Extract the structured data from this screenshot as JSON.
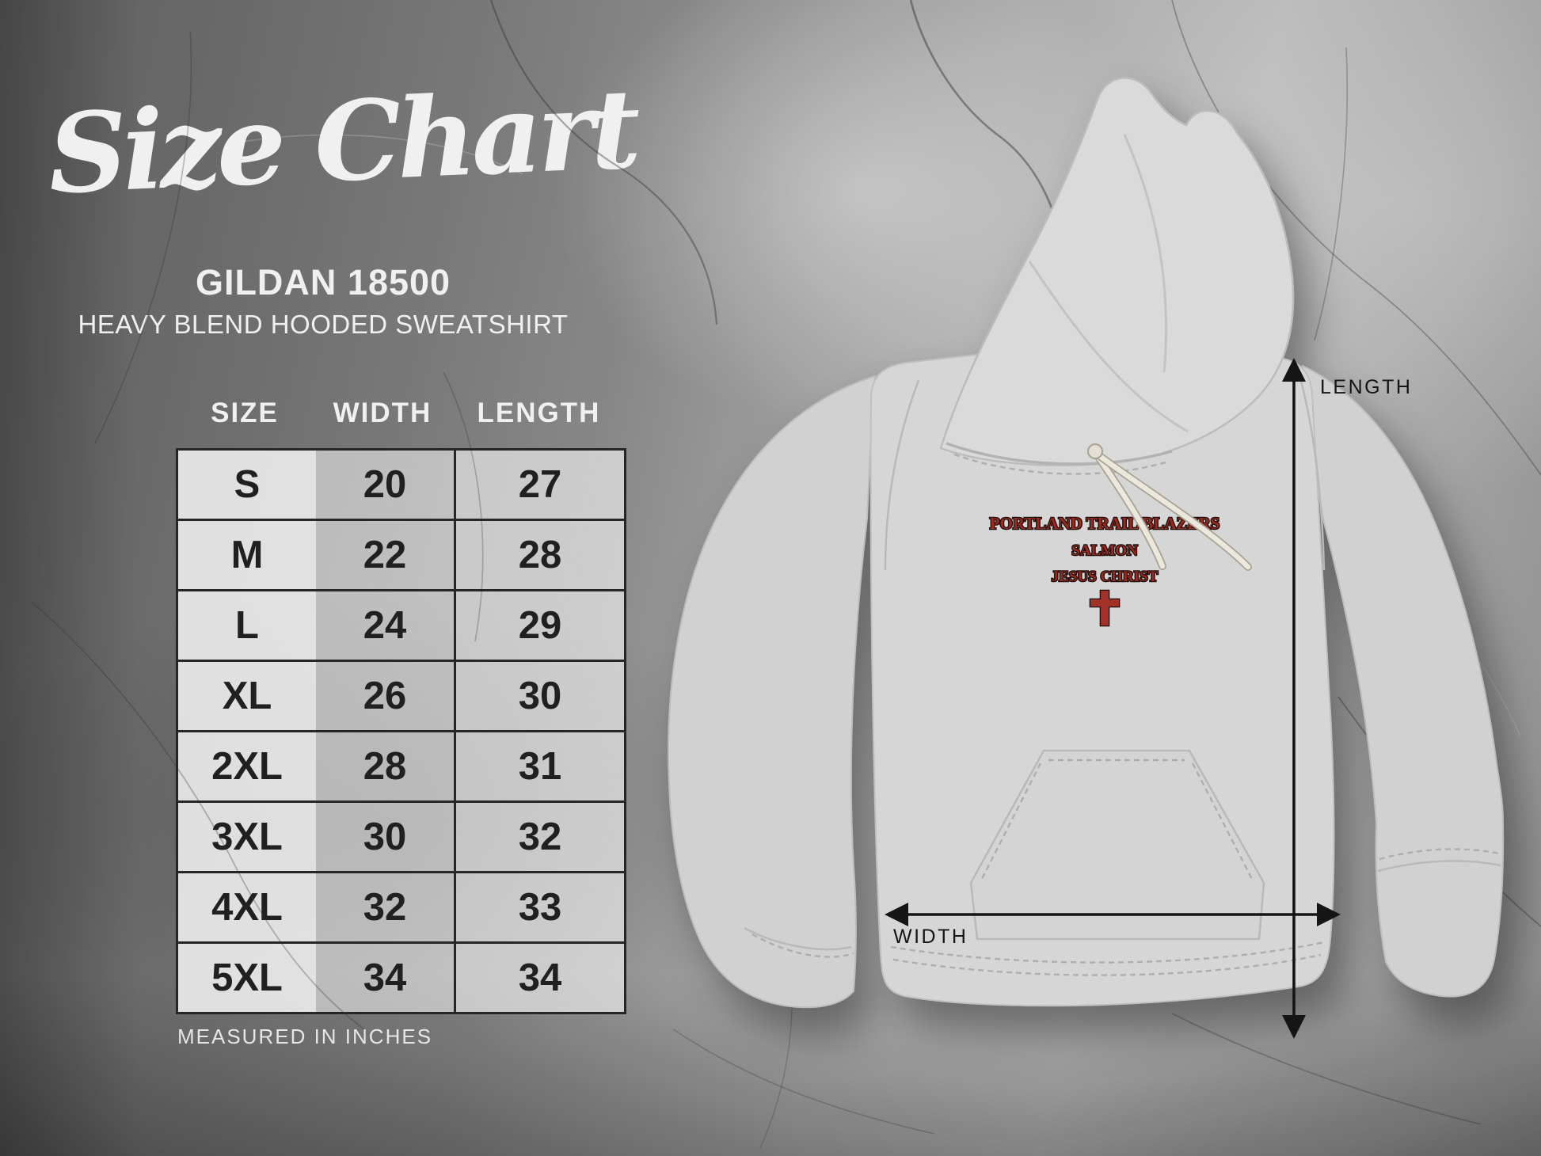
{
  "title": {
    "script": "Size Chart"
  },
  "product": {
    "code": "GILDAN 18500",
    "name": "HEAVY BLEND HOODED SWEATSHIRT"
  },
  "size_table": {
    "columns": [
      "SIZE",
      "WIDTH",
      "LENGTH"
    ],
    "rows": [
      [
        "S",
        "20",
        "27"
      ],
      [
        "M",
        "22",
        "28"
      ],
      [
        "L",
        "24",
        "29"
      ],
      [
        "XL",
        "26",
        "30"
      ],
      [
        "2XL",
        "28",
        "31"
      ],
      [
        "3XL",
        "30",
        "32"
      ],
      [
        "4XL",
        "32",
        "33"
      ],
      [
        "5XL",
        "34",
        "34"
      ]
    ],
    "footnote": "MEASURED IN INCHES"
  },
  "mockup": {
    "garment": "heather gray hooded sweatshirt (flat lay, front view)",
    "print_lines": [
      "PORTLAND TRAIL BLAZERS",
      "SALMON",
      "JESUS CHRIST"
    ],
    "print_icon": "latin-cross-icon",
    "labels": {
      "length": "LENGTH",
      "width": "WIDTH"
    }
  },
  "chart_data": {
    "type": "table",
    "title": "Size Chart",
    "subtitle": "GILDAN 18500 HEAVY BLEND HOODED SWEATSHIRT",
    "columns": [
      "SIZE",
      "WIDTH",
      "LENGTH"
    ],
    "rows": [
      [
        "S",
        20,
        27
      ],
      [
        "M",
        22,
        28
      ],
      [
        "L",
        24,
        29
      ],
      [
        "XL",
        26,
        30
      ],
      [
        "2XL",
        28,
        31
      ],
      [
        "3XL",
        30,
        32
      ],
      [
        "4XL",
        32,
        33
      ],
      [
        "5XL",
        34,
        34
      ]
    ],
    "units": "inches",
    "notes": "WIDTH and LENGTH dimension arrows drawn over hoodie mockup"
  },
  "colors": {
    "print_red": "#98291f",
    "print_outline": "#1d0f0d",
    "table_border": "#1c1c1c",
    "cell_text": "#161616",
    "heading_text": "#ffffff",
    "dimension_text": "#141414",
    "hoodie_fabric": "#d6d6d6",
    "drawcord": "#ece8de",
    "background_concrete": "#8a8a8a"
  }
}
